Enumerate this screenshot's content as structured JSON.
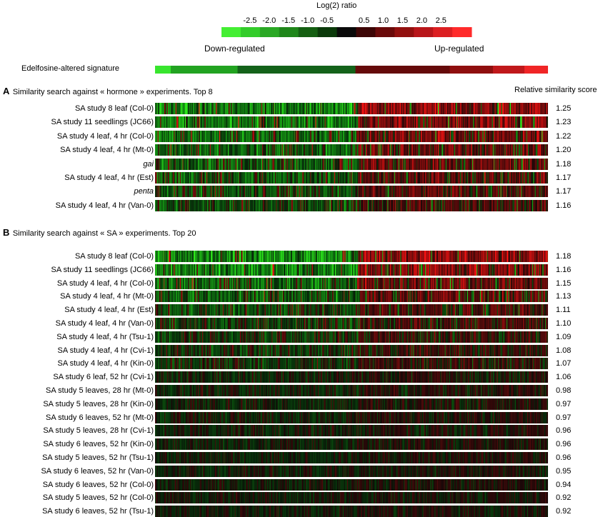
{
  "legend": {
    "title": "Log(2) ratio",
    "ticks": [
      "-2.5",
      "-2.0",
      "-1.5",
      "-1.0",
      "-0.5",
      "0.5",
      "1.0",
      "1.5",
      "2.0",
      "2.5"
    ],
    "colors": [
      "#44ee33",
      "#33cc2a",
      "#2aa824",
      "#1f861a",
      "#155f12",
      "#0b3a0a",
      "#0a0a0a",
      "#3d0606",
      "#6a0a0a",
      "#92100f",
      "#b8161a",
      "#dc1f22",
      "#ff2b2b"
    ],
    "down_label": "Down-regulated",
    "up_label": "Up-regulated"
  },
  "signature": {
    "label": "Edelfosine-altered signature",
    "segments": [
      {
        "from": 0.0,
        "to": 0.04,
        "color": "#38e52e"
      },
      {
        "from": 0.04,
        "to": 0.21,
        "color": "#22a321"
      },
      {
        "from": 0.21,
        "to": 0.51,
        "color": "#14621a"
      },
      {
        "from": 0.51,
        "to": 0.75,
        "color": "#650a0a"
      },
      {
        "from": 0.75,
        "to": 0.86,
        "color": "#8f0f0f"
      },
      {
        "from": 0.86,
        "to": 0.94,
        "color": "#c0181b"
      },
      {
        "from": 0.94,
        "to": 1.0,
        "color": "#f02526"
      }
    ]
  },
  "panelA": {
    "letter": "A",
    "title": "Similarity search against « hormone » experiments. Top 8",
    "score_header": "Relative similarity score",
    "rows": [
      {
        "label": "SA study 8 leaf (Col-0)",
        "score": "1.25",
        "italic": false
      },
      {
        "label": "SA study 11 seedlings (JC66)",
        "score": "1.23",
        "italic": false
      },
      {
        "label": "SA study 4 leaf, 4 hr (Col-0)",
        "score": "1.22",
        "italic": false
      },
      {
        "label": "SA study 4 leaf, 4 hr (Mt-0)",
        "score": "1.20",
        "italic": false
      },
      {
        "label": "gai",
        "score": "1.18",
        "italic": true
      },
      {
        "label": "SA study 4 leaf, 4 hr (Est)",
        "score": "1.17",
        "italic": false
      },
      {
        "label": "penta",
        "score": "1.17",
        "italic": true
      },
      {
        "label": "SA study 4 leaf, 4 hr  (Van-0)",
        "score": "1.16",
        "italic": false
      }
    ]
  },
  "panelB": {
    "letter": "B",
    "title": "Similarity search against « SA » experiments. Top 20",
    "rows": [
      {
        "label": "SA study 8 leaf (Col-0)",
        "score": "1.18",
        "italic": false
      },
      {
        "label": "SA study 11 seedlings (JC66)",
        "score": "1.16",
        "italic": false
      },
      {
        "label": "SA study 4 leaf, 4 hr (Col-0)",
        "score": "1.15",
        "italic": false
      },
      {
        "label": "SA study 4 leaf, 4 hr (Mt-0)",
        "score": "1.13",
        "italic": false
      },
      {
        "label": "SA study 4 leaf, 4 hr (Est)",
        "score": "1.11",
        "italic": false
      },
      {
        "label": "SA study 4 leaf, 4 hr  (Van-0)",
        "score": "1.10",
        "italic": false
      },
      {
        "label": "SA study 4 leaf, 4 hr (Tsu-1)",
        "score": "1.09",
        "italic": false
      },
      {
        "label": "SA study 4 leaf, 4 hr (Cvi-1)",
        "score": "1.08",
        "italic": false
      },
      {
        "label": "SA study 4 leaf, 4 hr (Kin-0)",
        "score": "1.07",
        "italic": false
      },
      {
        "label": "SA study 6 leaf, 52 hr  (Cvi-1)",
        "score": "1.06",
        "italic": false
      },
      {
        "label": "SA study 5 leaves, 28 hr (Mt-0)",
        "score": "0.98",
        "italic": false
      },
      {
        "label": "SA study 5 leaves, 28 hr (Kin-0)",
        "score": "0.97",
        "italic": false
      },
      {
        "label": "SA study 6 leaves, 52 hr (Mt-0)",
        "score": "0.97",
        "italic": false
      },
      {
        "label": "SA study 5 leaves, 28 hr (Cvi-1)",
        "score": "0.96",
        "italic": false
      },
      {
        "label": "SA study 6 leaves, 52 hr (Kin-0)",
        "score": "0.96",
        "italic": false
      },
      {
        "label": "SA study 5 leaves, 52 hr (Tsu-1)",
        "score": "0.96",
        "italic": false
      },
      {
        "label": "SA study 6 leaves, 52 hr (Van-0)",
        "score": "0.95",
        "italic": false
      },
      {
        "label": "SA study 6 leaves, 52 hr (Col-0)",
        "score": "0.94",
        "italic": false
      },
      {
        "label": "SA study 5 leaves, 52 hr (Col-0)",
        "score": "0.92",
        "italic": false
      },
      {
        "label": "SA study 6 leaves, 52 hr (Tsu-1)",
        "score": "0.92",
        "italic": false
      }
    ]
  },
  "chart_data": [
    {
      "type": "heatmap",
      "title": "Similarity search against « hormone » experiments. Top 8",
      "categories": [
        "SA study 8 leaf (Col-0)",
        "SA study 11 seedlings (JC66)",
        "SA study 4 leaf, 4 hr (Col-0)",
        "SA study 4 leaf, 4 hr (Mt-0)",
        "gai",
        "SA study 4 leaf, 4 hr (Est)",
        "penta",
        "SA study 4 leaf, 4 hr  (Van-0)"
      ],
      "values": [
        1.25,
        1.23,
        1.22,
        1.2,
        1.18,
        1.17,
        1.17,
        1.16
      ],
      "ylabel": "Relative similarity score",
      "color_scale_ticks": [
        -2.5,
        -2.0,
        -1.5,
        -1.0,
        -0.5,
        0.5,
        1.0,
        1.5,
        2.0,
        2.5
      ]
    },
    {
      "type": "heatmap",
      "title": "Similarity search against « SA » experiments. Top 20",
      "categories": [
        "SA study 8 leaf (Col-0)",
        "SA study 11 seedlings (JC66)",
        "SA study 4 leaf, 4 hr (Col-0)",
        "SA study 4 leaf, 4 hr (Mt-0)",
        "SA study 4 leaf, 4 hr (Est)",
        "SA study 4 leaf, 4 hr  (Van-0)",
        "SA study 4 leaf, 4 hr (Tsu-1)",
        "SA study 4 leaf, 4 hr (Cvi-1)",
        "SA study 4 leaf, 4 hr (Kin-0)",
        "SA study 6 leaf, 52 hr  (Cvi-1)",
        "SA study 5 leaves, 28 hr (Mt-0)",
        "SA study 5 leaves, 28 hr (Kin-0)",
        "SA study 6 leaves, 52 hr (Mt-0)",
        "SA study 5 leaves, 28 hr (Cvi-1)",
        "SA study 6 leaves, 52 hr (Kin-0)",
        "SA study 5 leaves, 52 hr (Tsu-1)",
        "SA study 6 leaves, 52 hr (Van-0)",
        "SA study 6 leaves, 52 hr (Col-0)",
        "SA study 5 leaves, 52 hr (Col-0)",
        "SA study 6 leaves, 52 hr (Tsu-1)"
      ],
      "values": [
        1.18,
        1.16,
        1.15,
        1.13,
        1.11,
        1.1,
        1.09,
        1.08,
        1.07,
        1.06,
        0.98,
        0.97,
        0.97,
        0.96,
        0.96,
        0.96,
        0.95,
        0.94,
        0.92,
        0.92
      ]
    }
  ]
}
